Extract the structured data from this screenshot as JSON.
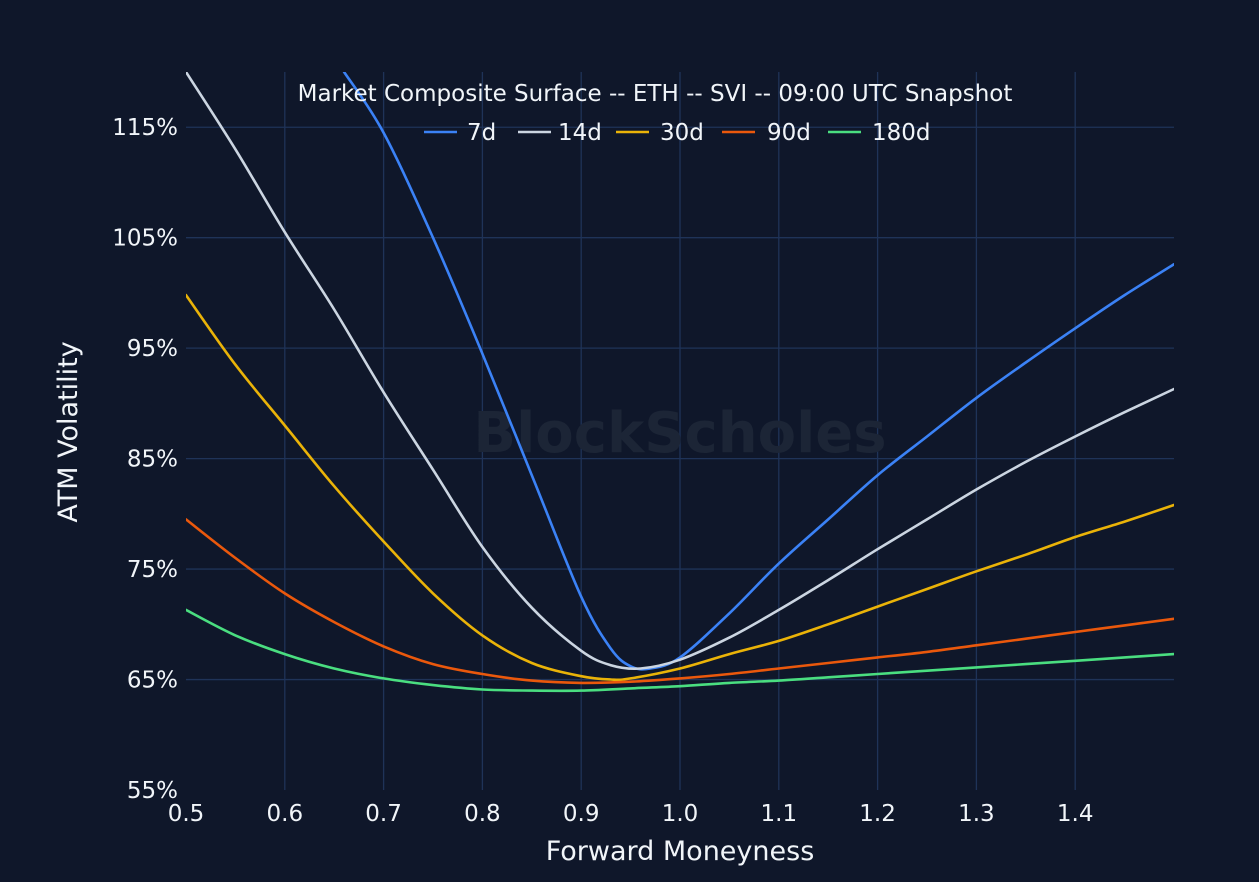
{
  "watermark": "BlockScholes",
  "chart_data": {
    "type": "line",
    "title": "Market Composite Surface -- ETH -- SVI -- 09:00 UTC Snapshot",
    "xlabel": "Forward Moneyness",
    "ylabel": "ATM Volatility",
    "xlim": [
      0.5,
      1.5
    ],
    "ylim": [
      55,
      120
    ],
    "x_ticks": [
      0.5,
      0.6,
      0.7,
      0.8,
      0.9,
      1.0,
      1.1,
      1.2,
      1.3,
      1.4
    ],
    "x_tick_labels": [
      "0.5",
      "0.6",
      "0.7",
      "0.8",
      "0.9",
      "1.0",
      "1.1",
      "1.2",
      "1.3",
      "1.4"
    ],
    "y_ticks": [
      55,
      65,
      75,
      85,
      95,
      105,
      115
    ],
    "y_tick_labels": [
      "55%",
      "65%",
      "75%",
      "85%",
      "95%",
      "105%",
      "115%"
    ],
    "grid": true,
    "legend_position": "top-center",
    "colors": {
      "background": "#0f172a",
      "grid": "#1f3358",
      "text": "#f1f5f9"
    },
    "series": [
      {
        "name": "7d",
        "color": "#3b82f6",
        "x": [
          0.66,
          0.7,
          0.75,
          0.8,
          0.85,
          0.9,
          0.93,
          0.95,
          0.97,
          1.0,
          1.05,
          1.1,
          1.15,
          1.2,
          1.25,
          1.3,
          1.35,
          1.4,
          1.45,
          1.5
        ],
        "y": [
          120.0,
          114.5,
          105.0,
          94.5,
          83.5,
          72.5,
          67.8,
          66.2,
          66.0,
          67.0,
          71.0,
          75.5,
          79.5,
          83.5,
          87.0,
          90.5,
          93.7,
          96.8,
          99.8,
          102.6
        ]
      },
      {
        "name": "14d",
        "color": "#cbd5e1",
        "x": [
          0.5,
          0.55,
          0.6,
          0.65,
          0.7,
          0.75,
          0.8,
          0.85,
          0.9,
          0.93,
          0.96,
          1.0,
          1.05,
          1.1,
          1.15,
          1.2,
          1.25,
          1.3,
          1.35,
          1.4,
          1.45,
          1.5
        ],
        "y": [
          120.0,
          113.0,
          105.5,
          98.5,
          91.0,
          84.0,
          77.0,
          71.5,
          67.6,
          66.3,
          66.0,
          66.8,
          68.8,
          71.3,
          74.0,
          76.8,
          79.5,
          82.2,
          84.7,
          87.0,
          89.2,
          91.3
        ]
      },
      {
        "name": "30d",
        "color": "#eab308",
        "x": [
          0.5,
          0.55,
          0.6,
          0.65,
          0.7,
          0.75,
          0.8,
          0.85,
          0.9,
          0.93,
          0.95,
          1.0,
          1.05,
          1.1,
          1.15,
          1.2,
          1.25,
          1.3,
          1.35,
          1.4,
          1.45,
          1.5
        ],
        "y": [
          99.8,
          93.5,
          88.0,
          82.5,
          77.5,
          72.8,
          69.0,
          66.5,
          65.3,
          65.0,
          65.1,
          66.0,
          67.3,
          68.5,
          70.0,
          71.6,
          73.2,
          74.8,
          76.3,
          77.9,
          79.3,
          80.8
        ]
      },
      {
        "name": "90d",
        "color": "#ea580c",
        "x": [
          0.5,
          0.55,
          0.6,
          0.65,
          0.7,
          0.75,
          0.8,
          0.85,
          0.9,
          0.95,
          1.0,
          1.05,
          1.1,
          1.15,
          1.2,
          1.25,
          1.3,
          1.35,
          1.4,
          1.45,
          1.5
        ],
        "y": [
          79.5,
          76.0,
          72.8,
          70.2,
          68.0,
          66.4,
          65.5,
          64.9,
          64.7,
          64.8,
          65.1,
          65.5,
          66.0,
          66.5,
          67.0,
          67.5,
          68.1,
          68.7,
          69.3,
          69.9,
          70.5
        ]
      },
      {
        "name": "180d",
        "color": "#4ade80",
        "x": [
          0.5,
          0.55,
          0.6,
          0.65,
          0.7,
          0.75,
          0.8,
          0.85,
          0.9,
          0.95,
          1.0,
          1.05,
          1.1,
          1.15,
          1.2,
          1.25,
          1.3,
          1.35,
          1.4,
          1.45,
          1.5
        ],
        "y": [
          71.3,
          69.0,
          67.3,
          66.0,
          65.1,
          64.5,
          64.1,
          64.0,
          64.0,
          64.2,
          64.4,
          64.7,
          64.9,
          65.2,
          65.5,
          65.8,
          66.1,
          66.4,
          66.7,
          67.0,
          67.3
        ]
      }
    ]
  }
}
